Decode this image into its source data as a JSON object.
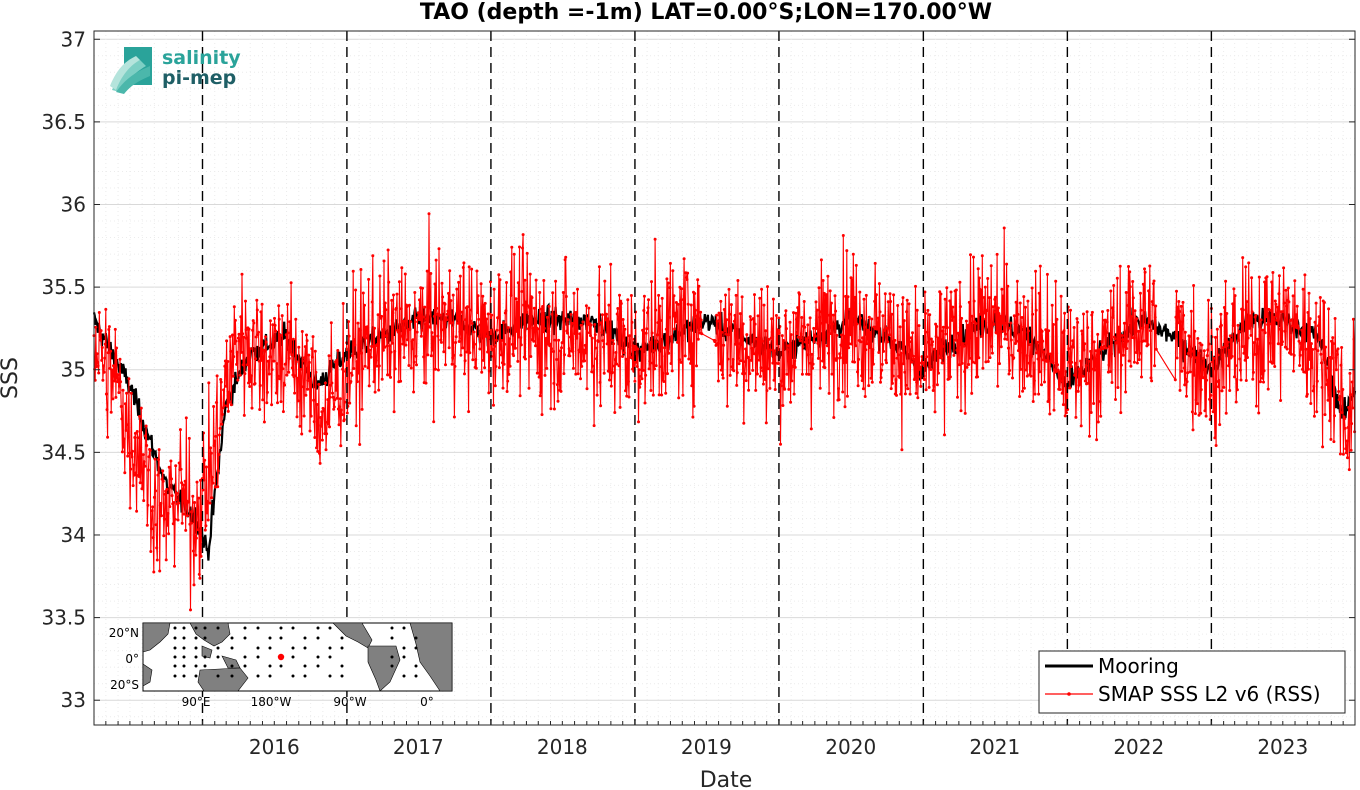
{
  "chart_data": {
    "type": "line",
    "title": "TAO (depth =-1m) LAT=0.00°S;LON=170.00°W",
    "xlabel": "Date",
    "ylabel": "SSS",
    "x_tick_labels": [
      "2016",
      "2017",
      "2018",
      "2019",
      "2020",
      "2021",
      "2022",
      "2023"
    ],
    "y_tick_labels": [
      "33",
      "33.5",
      "34",
      "34.5",
      "35",
      "35.5",
      "36",
      "36.5",
      "37"
    ],
    "xlim": [
      "2015-04-01",
      "2023-12-31"
    ],
    "ylim": [
      32.85,
      37.05
    ],
    "grid": true,
    "year_boundaries": [
      "2016-01-01",
      "2017-01-01",
      "2018-01-01",
      "2019-01-01",
      "2020-01-01",
      "2021-01-01",
      "2022-01-01",
      "2023-01-01"
    ],
    "legend_position": "bottom-right",
    "series": [
      {
        "name": "Mooring",
        "color": "#000000",
        "x": [
          "2015-04-01",
          "2015-07-01",
          "2015-10-01",
          "2015-12-15",
          "2016-01-15",
          "2016-03-01",
          "2016-05-01",
          "2016-08-01",
          "2016-10-15",
          "2017-01-01",
          "2017-04-01",
          "2017-07-01",
          "2017-10-01",
          "2018-01-01",
          "2018-04-01",
          "2018-07-01",
          "2018-10-01",
          "2019-01-01",
          "2019-04-01",
          "2019-07-01",
          "2019-10-01",
          "2020-01-01",
          "2020-04-01",
          "2020-07-01",
          "2020-10-01",
          "2021-01-01",
          "2021-04-01",
          "2021-07-01",
          "2021-10-01",
          "2022-01-01",
          "2022-04-01",
          "2022-07-01",
          "2022-10-01",
          "2023-01-01",
          "2023-04-01",
          "2023-07-01",
          "2023-10-01",
          "2023-12-01",
          "2023-12-31"
        ],
        "y": [
          35.3,
          34.9,
          34.3,
          34.1,
          33.9,
          34.8,
          35.1,
          35.2,
          34.9,
          35.1,
          35.2,
          35.3,
          35.3,
          35.2,
          35.3,
          35.3,
          35.3,
          35.1,
          35.2,
          35.3,
          35.2,
          35.1,
          35.2,
          35.3,
          35.2,
          35.0,
          35.2,
          35.3,
          35.2,
          34.9,
          35.1,
          35.3,
          35.2,
          35.0,
          35.3,
          35.3,
          35.2,
          34.7,
          34.9
        ]
      },
      {
        "name": "SMAP SSS L2 v6 (RSS)",
        "color": "#ff0000",
        "x": [
          "2015-04-01",
          "2015-05-01",
          "2015-06-01",
          "2015-07-01",
          "2015-08-01",
          "2015-09-01",
          "2015-10-01",
          "2015-11-01",
          "2015-12-01",
          "2016-01-01",
          "2016-02-01",
          "2016-03-01",
          "2016-04-01",
          "2016-06-01",
          "2016-08-01",
          "2016-10-01",
          "2016-11-01",
          "2017-01-01",
          "2017-03-01",
          "2017-06-01",
          "2017-09-01",
          "2018-01-01",
          "2018-03-01",
          "2018-06-01",
          "2018-09-01",
          "2019-01-01",
          "2019-03-01",
          "2019-06-01",
          "2019-09-01",
          "2020-01-01",
          "2020-04-01",
          "2020-07-01",
          "2020-10-01",
          "2021-01-01",
          "2021-04-01",
          "2021-07-01",
          "2021-10-01",
          "2022-01-01",
          "2022-04-01",
          "2022-07-01",
          "2022-10-01",
          "2023-01-01",
          "2023-04-01",
          "2023-07-01",
          "2023-10-01",
          "2023-11-15",
          "2023-12-15",
          "2023-12-31"
        ],
        "y": [
          35.2,
          35.0,
          34.9,
          34.6,
          34.5,
          34.2,
          34.1,
          34.3,
          34.1,
          34.2,
          34.5,
          34.9,
          35.2,
          35.1,
          35.1,
          34.9,
          34.7,
          35.0,
          35.2,
          35.2,
          35.3,
          35.2,
          35.3,
          35.2,
          35.2,
          35.1,
          35.2,
          35.3,
          35.2,
          35.1,
          35.2,
          35.3,
          35.2,
          35.0,
          35.2,
          35.3,
          35.2,
          35.0,
          35.1,
          35.3,
          35.2,
          35.0,
          35.2,
          35.3,
          35.1,
          35.0,
          34.6,
          34.9
        ]
      }
    ],
    "annotations": {
      "inset_map": {
        "lat_labels": [
          "20°N",
          "0°",
          "20°S"
        ],
        "lon_labels": [
          "90°E",
          "180°W",
          "90°W",
          "0°"
        ]
      },
      "logo": {
        "line1": "salinity",
        "line2": "pi-mep"
      }
    }
  }
}
